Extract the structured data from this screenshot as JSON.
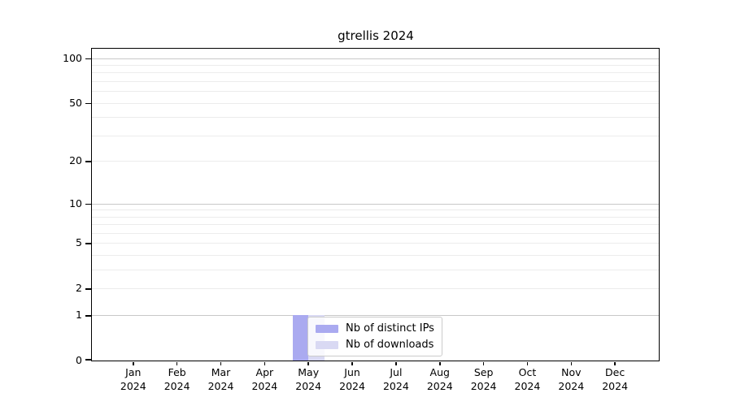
{
  "chart_data": {
    "type": "bar",
    "title": "gtrellis 2024",
    "categories": [
      "Jan 2024",
      "Feb 2024",
      "Mar 2024",
      "Apr 2024",
      "May 2024",
      "Jun 2024",
      "Jul 2024",
      "Aug 2024",
      "Sep 2024",
      "Oct 2024",
      "Nov 2024",
      "Dec 2024"
    ],
    "series": [
      {
        "name": "Nb of distinct IPs",
        "color": "#aaaaf0",
        "values": [
          0,
          0,
          0,
          0,
          1,
          0,
          0,
          0,
          0,
          0,
          0,
          0
        ]
      },
      {
        "name": "Nb of downloads",
        "color": "#d9d9f3",
        "values": [
          0,
          0,
          0,
          0,
          1,
          0,
          0,
          0,
          0,
          0,
          0,
          0
        ]
      }
    ],
    "yscale": "log1p",
    "yticks": [
      0,
      1,
      2,
      5,
      10,
      20,
      50,
      100
    ],
    "ylim": [
      0,
      118
    ],
    "grid": "horizontal",
    "grid_major_at": [
      1,
      10,
      100
    ],
    "legend_position": "inside-bottom-center",
    "colors": {
      "spine": "#000000",
      "grid_major": "#c8c8c8",
      "grid_minor": "#ececec",
      "background": "#ffffff"
    }
  }
}
